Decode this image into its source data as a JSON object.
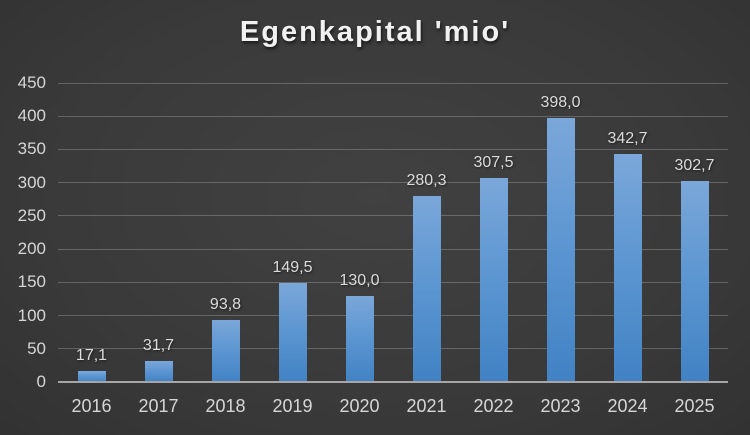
{
  "chart_data": {
    "type": "bar",
    "title": "Egenkapital 'mio'",
    "categories": [
      "2016",
      "2017",
      "2018",
      "2019",
      "2020",
      "2021",
      "2022",
      "2023",
      "2024",
      "2025"
    ],
    "values": [
      17.1,
      31.7,
      93.8,
      149.5,
      130.0,
      280.3,
      307.5,
      398.0,
      342.7,
      302.7
    ],
    "data_labels": [
      "17,1",
      "31,7",
      "93,8",
      "149,5",
      "130,0",
      "280,3",
      "307,5",
      "398,0",
      "342,7",
      "302,7"
    ],
    "xlabel": "",
    "ylabel": "",
    "ylim": [
      0,
      450
    ],
    "y_tick_step": 50,
    "y_tick_labels": [
      "0",
      "50",
      "100",
      "150",
      "200",
      "250",
      "300",
      "350",
      "400",
      "450"
    ],
    "decimal_separator": ",",
    "grid": true,
    "legend_position": "none",
    "colors": {
      "background_center": "#3e3e3e",
      "background_edge": "#242424",
      "bar_gradient_top": "#7BA7D9",
      "bar_gradient_bottom": "#4182C4",
      "gridline": "#5a5a5a",
      "axis_line": "#a6a6a6",
      "tick_label_text": "#d6d6d6",
      "data_label_text": "#dcdcdc",
      "title_text": "#f1f1f1"
    }
  }
}
